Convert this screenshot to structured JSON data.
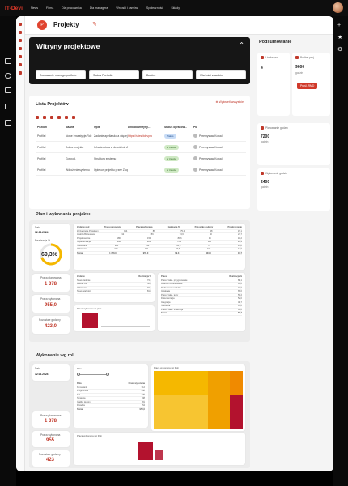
{
  "topbar": {
    "logo_main": "IT-Dev",
    "logo_accent": "i",
    "nav": [
      "News",
      "Firma",
      "Dla pracownika",
      "Dla managera",
      "Wnioski i zamówj",
      "Społeczność",
      "Sklady"
    ]
  },
  "header": {
    "title": "Projekty",
    "circle": "P"
  },
  "hero": {
    "title": "Witryny projektowe",
    "buttons": [
      "Dodawanie nowego portfolio",
      "Status Portfolio",
      "Budżet",
      "Wartości zasobów"
    ]
  },
  "projects": {
    "title": "Lista Projektów",
    "add_label": "Wyświetl wszystkie",
    "columns": [
      "Poziom",
      "Nazwa",
      "Opis",
      "Link do witryny...",
      "Status opracow...",
      "PM"
    ],
    "rows": [
      {
        "poziom": "Profilel",
        "nazwa": "Nowe Inwestycje/Rdz",
        "opis": "Zadanie apellatsko a więcej projekt",
        "link": "https://sites.itdevpro",
        "status": "Status",
        "status_color": "blue",
        "pm": "Przemysław Kowal"
      },
      {
        "poziom": "Profilel",
        "nazwa": "Dobra projektu",
        "opis": "Infrastruktura w dziedzinie Architektury - zagadnienia z wdrożenia",
        "link": "",
        "status": "w trakcie",
        "status_color": "green",
        "pm": "Przemysław Kowal"
      },
      {
        "poziom": "Profilel",
        "nazwa": "Gospod.",
        "opis": "Struktura systemu",
        "link": "",
        "status": "w trakcie",
        "status_color": "green",
        "pm": "Przemysław Kowal"
      },
      {
        "poziom": "Profilel",
        "nazwa": "Wdrożenie systemu",
        "opis": "Opiekun projektu przez Z uprawnieniami",
        "link": "",
        "status": "w trakcie",
        "status_color": "green",
        "pm": "Przemysław Kowal"
      }
    ]
  },
  "plan": {
    "title": "Plan i wykonania projektu",
    "date_label": "Data",
    "date": "12.06.2024",
    "gauge_label": "Realizacja %",
    "gauge_value": "69,3%",
    "gauge_fraction": 0.693,
    "kpis": [
      {
        "label": "Praca planowana",
        "value": "1 378"
      },
      {
        "label": "Praca wykonana",
        "value": "955,0"
      },
      {
        "label": "Pozostałe godziny",
        "value": "423,0"
      }
    ],
    "table_headers": [
      "Zadanie pod",
      "Praca planowana",
      "Praca wykonana",
      "Realizacja %",
      "Pozostałe godziny",
      "Przekroczenie"
    ],
    "table_rows": [
      [
        "Zarządzanie Projektem",
        "114",
        "86",
        "75,4",
        "28",
        "15,1"
      ],
      [
        "Analiza Biznesowa",
        "212",
        "156",
        "73,6",
        "56",
        "21,7"
      ],
      [
        "Projektowanie",
        "186",
        "150",
        "80,6",
        "36",
        "18,2"
      ],
      [
        "Implementacja",
        "398",
        "280",
        "70,4",
        "118",
        "22,9"
      ],
      [
        "Testowanie",
        "220",
        "142",
        "64,5",
        "78",
        "16,8"
      ],
      [
        "Wdrożenie",
        "248",
        "141",
        "56,9",
        "107",
        "12,0"
      ]
    ],
    "table_total": [
      "Suma",
      "1 378,0",
      "955,0",
      "69,3",
      "423,0",
      "10,7"
    ],
    "sub_headers_left": [
      "Zadanie",
      "Realizacja %"
    ],
    "sub_rows_left": [
      [
        "Nowe zadanie",
        "73,1"
      ],
      [
        "Moduły zał.",
        "56,2"
      ],
      [
        "Wdrożenie",
        "92,4"
      ],
      [
        "Nowe wartości",
        "81,0"
      ]
    ],
    "sub_headers_right": [
      "Prace",
      "Realizacja %"
    ],
    "sub_rows_right": [
      [
        "Prace Stałe - przygotowanie",
        "88,1"
      ],
      [
        "Analiza i dostosowanie",
        "81,0"
      ],
      [
        "Rozbudowa modułów",
        "74,0"
      ],
      [
        "Instalacja",
        "65,0"
      ],
      [
        "Prace Stałe - testy",
        "59,2"
      ],
      [
        "Dokumentacja",
        "52,0"
      ],
      [
        "Integracja",
        "48,7"
      ],
      [
        "Szkolenia",
        "41,0"
      ],
      [
        "Prace Stałe - finalizacja",
        "36,0"
      ]
    ],
    "sub_total_right": [
      "Suma",
      "69,3"
    ],
    "bar_chart_title": "Praca wykonana vs plan"
  },
  "roles": {
    "title": "Wykonanie wg roli",
    "date_label": "Data",
    "date": "12.06.2024",
    "kpis": [
      {
        "label": "Praca planowana",
        "value": "1 378"
      },
      {
        "label": "Praca wykonana",
        "value": "955"
      },
      {
        "label": "Pozostałe godziny",
        "value": "423"
      }
    ],
    "slider_label": "Rola",
    "table_headers": [
      "Rola",
      "Praca wykonana"
    ],
    "table_rows": [
      [
        "Konsultant",
        "312"
      ],
      [
        "Programista",
        "268"
      ],
      [
        "PM",
        "142"
      ],
      [
        "Strategia",
        "98"
      ],
      [
        "Grafik i design",
        "81"
      ],
      [
        "Doradca",
        "54"
      ]
    ],
    "table_total": [
      "Suma",
      "955,0"
    ],
    "treemap_title": "Praca wykonana wg Roli",
    "bar_title": "Praca wykonana wg Roli"
  },
  "summary": {
    "title": "Podsumowanie",
    "cards": [
      {
        "label": "Liczba proj.",
        "value": "4"
      },
      {
        "label": "Budżet proj.",
        "value": "9600",
        "sub": "godzin",
        "button": "Prośl. RMD"
      },
      {
        "label": "Planowanie godzin",
        "value": "7200",
        "sub": "godzin"
      },
      {
        "label": "Wykonanie godzin",
        "value": "2400",
        "sub": "godzin"
      }
    ]
  },
  "colors": {
    "accent": "#d0392a",
    "dark": "#161616",
    "gold": "#f5b800",
    "orange": "#f08a00",
    "crimson": "#b3122e"
  }
}
